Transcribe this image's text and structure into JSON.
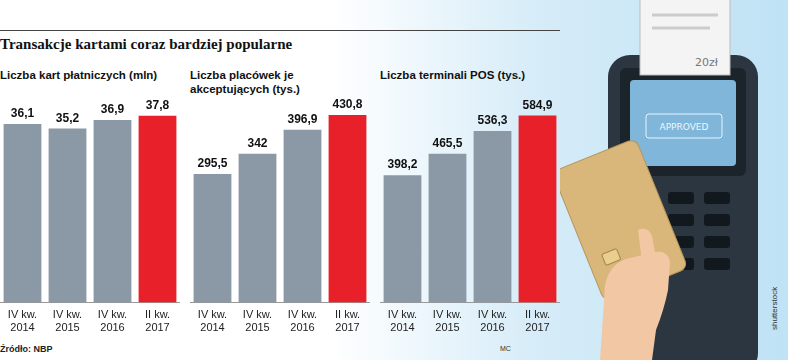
{
  "title": "Transakcje kartami coraz bardziej popularne",
  "source": "Źródło: NBP",
  "credits": [
    "MC",
    "shutterstock"
  ],
  "illustration": {
    "receipt": "20zł",
    "screen": "APPROVED"
  },
  "chart_data": [
    {
      "type": "bar",
      "title": "Liczba kart płatniczych (mln)",
      "categories": [
        "IV kw. 2014",
        "IV kw. 2015",
        "IV kw. 2016",
        "II kw. 2017"
      ],
      "values": [
        36.1,
        35.2,
        36.9,
        37.8
      ],
      "value_labels": [
        "36,1",
        "35,2",
        "36,9",
        "37,8"
      ],
      "colors": [
        "#8a99a5",
        "#8a99a5",
        "#8a99a5",
        "#e8202a"
      ],
      "ylim": [
        0,
        44
      ],
      "grid": false,
      "data_labels": true,
      "tick_labels": "x"
    },
    {
      "type": "bar",
      "title": "Liczba placówek je akceptujących (tys.)",
      "categories": [
        "IV kw. 2014",
        "IV kw. 2015",
        "IV kw. 2016",
        "II kw. 2017"
      ],
      "values": [
        295.5,
        342,
        396.9,
        430.8
      ],
      "value_labels": [
        "295,5",
        "342",
        "396,9",
        "430,8"
      ],
      "colors": [
        "#8a99a5",
        "#8a99a5",
        "#8a99a5",
        "#e8202a"
      ],
      "ylim": [
        0,
        500
      ],
      "grid": false,
      "data_labels": true,
      "tick_labels": "x"
    },
    {
      "type": "bar",
      "title": "Liczba terminali POS (tys.)",
      "categories": [
        "IV kw. 2014",
        "IV kw. 2015",
        "IV kw. 2016",
        "II kw. 2017"
      ],
      "values": [
        398.2,
        465.5,
        536.3,
        584.9
      ],
      "value_labels": [
        "398,2",
        "465,5",
        "536,3",
        "584,9"
      ],
      "colors": [
        "#8a99a5",
        "#8a99a5",
        "#8a99a5",
        "#e8202a"
      ],
      "ylim": [
        0,
        680
      ],
      "grid": false,
      "data_labels": true,
      "tick_labels": "x"
    }
  ]
}
